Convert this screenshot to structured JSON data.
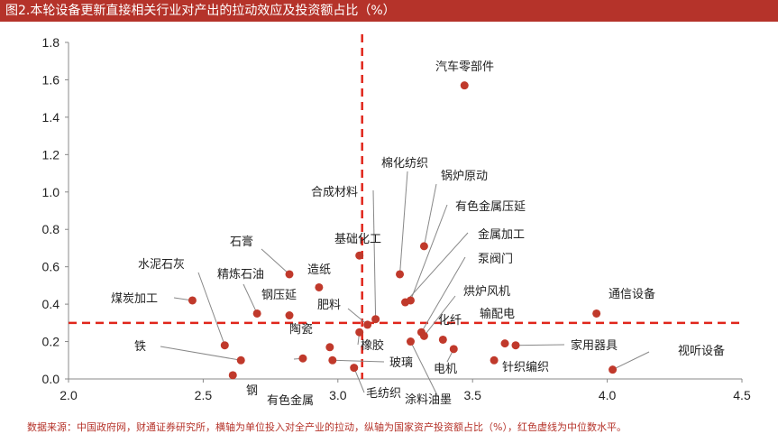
{
  "title": "图2.本轮设备更新直接相关行业对产出的拉动效应及投资额占比（%）",
  "footer": "数据来源：中国政府网，财通证券研究所，横轴为单位投入对全产业的拉动，纵轴为国家资产投资额占比（%），红色虚线为中位数水平。",
  "colors": {
    "title_bg": "#b5332a",
    "point": "#c0392b",
    "median_line": "#e0261b",
    "leader": "#888888",
    "axis": "#888888"
  },
  "chart_data": {
    "type": "scatter",
    "xlim": [
      2.0,
      4.5
    ],
    "ylim": [
      0.0,
      1.8
    ],
    "xticks": [
      "2.0",
      "2.5",
      "3.0",
      "3.5",
      "4.0",
      "4.5"
    ],
    "yticks": [
      "0.0",
      "0.2",
      "0.4",
      "0.6",
      "0.8",
      "1.0",
      "1.2",
      "1.4",
      "1.6",
      "1.8"
    ],
    "median_x": 3.09,
    "median_y": 0.3,
    "points": [
      {
        "label": "汽车零部件",
        "x": 3.47,
        "y": 1.57
      },
      {
        "label": "棉化纺织",
        "x": 3.23,
        "y": 0.56
      },
      {
        "label": "锅炉原动",
        "x": 3.32,
        "y": 0.71
      },
      {
        "label": "合成材料",
        "x": 3.14,
        "y": 0.32
      },
      {
        "label": "有色金属压延",
        "x": 3.27,
        "y": 0.42
      },
      {
        "label": "金属加工",
        "x": 3.25,
        "y": 0.41
      },
      {
        "label": "基础化工",
        "x": 3.08,
        "y": 0.66
      },
      {
        "label": "泵阀门",
        "x": 3.31,
        "y": 0.25
      },
      {
        "label": "石膏",
        "x": 2.82,
        "y": 0.56
      },
      {
        "label": "造纸",
        "x": 2.93,
        "y": 0.49
      },
      {
        "label": "水泥石灰",
        "x": 2.58,
        "y": 0.18
      },
      {
        "label": "精炼石油",
        "x": 2.7,
        "y": 0.35
      },
      {
        "label": "煤炭加工",
        "x": 2.46,
        "y": 0.42
      },
      {
        "label": "钢压延",
        "x": 2.82,
        "y": 0.34
      },
      {
        "label": "肥料",
        "x": 3.11,
        "y": 0.29
      },
      {
        "label": "烘炉风机",
        "x": 3.32,
        "y": 0.23
      },
      {
        "label": "通信设备",
        "x": 3.96,
        "y": 0.35
      },
      {
        "label": "陶瓷",
        "x": 2.97,
        "y": 0.17
      },
      {
        "label": "化纤",
        "x": 3.39,
        "y": 0.21
      },
      {
        "label": "输配电",
        "x": 3.62,
        "y": 0.19
      },
      {
        "label": "橡胶",
        "x": 3.08,
        "y": 0.25
      },
      {
        "label": "铁",
        "x": 2.64,
        "y": 0.1
      },
      {
        "label": "玻璃",
        "x": 2.98,
        "y": 0.1
      },
      {
        "label": "家用器具",
        "x": 3.66,
        "y": 0.18
      },
      {
        "label": "电机",
        "x": 3.43,
        "y": 0.16
      },
      {
        "label": "视听设备",
        "x": 4.02,
        "y": 0.05
      },
      {
        "label": "钢",
        "x": 2.61,
        "y": 0.02
      },
      {
        "label": "针织编织",
        "x": 3.58,
        "y": 0.1
      },
      {
        "label": "有色金属",
        "x": 2.87,
        "y": 0.11
      },
      {
        "label": "毛纺织",
        "x": 3.06,
        "y": 0.06
      },
      {
        "label": "涂料油墨",
        "x": 3.27,
        "y": 0.2
      }
    ]
  }
}
